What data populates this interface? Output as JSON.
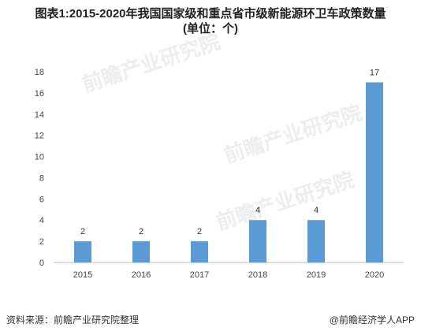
{
  "title_line1": "图表1:2015-2020年我国国家级和重点省市级新能源环卫车政策数量",
  "title_line2": "(单位：个)",
  "footer": {
    "source": "资料来源：前瞻产业研究院整理",
    "brand": "@前瞻经济学人APP"
  },
  "watermark": "前瞻产业研究院",
  "chart_data": {
    "type": "bar",
    "categories": [
      "2015",
      "2016",
      "2017",
      "2018",
      "2019",
      "2020"
    ],
    "values": [
      2,
      2,
      2,
      4,
      4,
      17
    ],
    "title": "图表1:2015-2020年我国国家级和重点省市级新能源环卫车政策数量(单位：个)",
    "xlabel": "",
    "ylabel": "",
    "ylim": [
      0,
      18
    ],
    "yticks": [
      0,
      2,
      4,
      6,
      8,
      10,
      12,
      14,
      16,
      18
    ],
    "grid": false,
    "legend": "none",
    "bar_color": "#5b9bd5",
    "data_labels": true
  }
}
